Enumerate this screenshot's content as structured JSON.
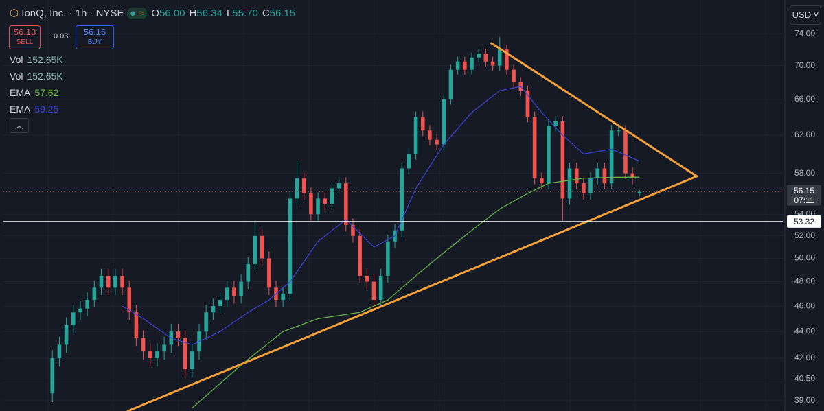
{
  "toolbar": {
    "symbol": "IonQ, Inc. · 1h · NYSE",
    "ohlc": [
      {
        "key": "O",
        "value": "56.00"
      },
      {
        "key": "H",
        "value": "56.34"
      },
      {
        "key": "L",
        "value": "55.70"
      },
      {
        "key": "C",
        "value": "56.15"
      }
    ],
    "sell": {
      "price": "56.13",
      "label": "SELL"
    },
    "spread": "0.03",
    "buy": {
      "price": "56.16",
      "label": "BUY"
    },
    "indicators": [
      {
        "name": "Vol",
        "value": "152.65K",
        "color": "#8fb9b4"
      },
      {
        "name": "Vol",
        "value": "152.65K",
        "color": "#8fb9b4"
      },
      {
        "name": "EMA",
        "value": "57.62",
        "color": "#6abf4b"
      },
      {
        "name": "EMA",
        "value": "59.25",
        "color": "#3b45d9"
      }
    ],
    "currency": "USD",
    "countdown": "07:11"
  },
  "chart_data": {
    "type": "candlestick",
    "log_scale": true,
    "grid": true,
    "up_color": "#26a69a",
    "down_color": "#ef5350",
    "xlim": [
      -7,
      104.5
    ],
    "ylim": [
      38.3,
      78.5
    ],
    "yticks": [
      {
        "value": 74,
        "label": "74.00"
      },
      {
        "value": 70,
        "label": "70.00"
      },
      {
        "value": 66,
        "label": "66.00"
      },
      {
        "value": 62,
        "label": "62.00"
      },
      {
        "value": 58,
        "label": "58.00"
      },
      {
        "value": 54,
        "label": "54.00"
      },
      {
        "value": 52,
        "label": "52.00"
      },
      {
        "value": 50,
        "label": "50.00"
      },
      {
        "value": 48,
        "label": "48.00"
      },
      {
        "value": 46,
        "label": "46.00"
      },
      {
        "value": 44,
        "label": "44.00"
      },
      {
        "value": 42,
        "label": "42.00"
      },
      {
        "value": 40.5,
        "label": "40.50"
      },
      {
        "value": 39,
        "label": "39.00"
      }
    ],
    "open": [
      39.5,
      42,
      43,
      44.5,
      45.5,
      45.8,
      46.5,
      47.5,
      48.5,
      47.5,
      48.5,
      47.5,
      45.5,
      43.5,
      42.5,
      42,
      42.5,
      43,
      44,
      43.5,
      41.2,
      42.5,
      44,
      45.5,
      46,
      46.5,
      47.5,
      46.8,
      48,
      49.5,
      52,
      50,
      47.5,
      46.5,
      47,
      55.5,
      57.5,
      56,
      54,
      55.5,
      55,
      56.5,
      57,
      53,
      52,
      48.5,
      48,
      46.5,
      48.5,
      51.5,
      52.5,
      58.5,
      60,
      64,
      62.5,
      61.5,
      61,
      66,
      69.5,
      70.5,
      69.5,
      71,
      71.5,
      70.5,
      70,
      72,
      69.5,
      68,
      67,
      64,
      57.5,
      57,
      63,
      63.5,
      55.5,
      58.5,
      57,
      56,
      57.5,
      58.5,
      57,
      62.5,
      62.5,
      58,
      56
    ],
    "high": [
      42.6,
      43.6,
      45.1,
      46.1,
      46.4,
      47.1,
      48.1,
      49.1,
      49.1,
      49.1,
      49.1,
      48.1,
      46.1,
      44.1,
      43.1,
      43.1,
      43.6,
      44.6,
      44.6,
      44.1,
      43.1,
      44.6,
      46.1,
      46.6,
      47.1,
      48.1,
      48.1,
      48.6,
      50.1,
      53.4,
      52.6,
      50.6,
      48.1,
      47.6,
      56.1,
      59.3,
      58.1,
      56.6,
      56.1,
      56.1,
      57.1,
      57.6,
      57.6,
      53.6,
      52.6,
      49.1,
      48.6,
      49.1,
      52.1,
      53.1,
      59.1,
      60.6,
      64.6,
      64.6,
      63.1,
      62.1,
      66.6,
      70.1,
      71.1,
      71.1,
      71.6,
      72.1,
      72.1,
      71.1,
      73.6,
      72.6,
      70.1,
      68.6,
      67.6,
      64.6,
      58.1,
      63.6,
      64.1,
      64.1,
      59.1,
      59.1,
      57.6,
      58.1,
      59.1,
      59.1,
      63.1,
      63.1,
      63.1,
      58.6,
      56.34
    ],
    "low": [
      38.9,
      41.4,
      42.4,
      43.9,
      44.9,
      45.2,
      45.9,
      46.9,
      46.9,
      46.9,
      46.9,
      44.9,
      42.9,
      41.9,
      41.4,
      41.4,
      41.9,
      42.4,
      42.9,
      40.6,
      40.6,
      41.9,
      43.4,
      44.9,
      45.4,
      45.9,
      46.2,
      46.2,
      47.4,
      48.9,
      49.4,
      46.9,
      45.9,
      45.9,
      46.4,
      54.9,
      55.4,
      53.4,
      53.4,
      54.4,
      54.4,
      55.9,
      52.4,
      51.4,
      47.9,
      47.4,
      45.6,
      45.9,
      47.9,
      50.9,
      51.9,
      57.9,
      59.4,
      61.9,
      60.9,
      60.4,
      60.4,
      65.4,
      68.9,
      68.9,
      68.9,
      70.4,
      69.9,
      69.4,
      69.4,
      68.9,
      67.4,
      66.4,
      63.4,
      56.9,
      56.4,
      56.4,
      62.4,
      53.4,
      54.9,
      56.4,
      55.4,
      55.4,
      56.9,
      56.4,
      56.4,
      61.9,
      57.4,
      56.9,
      55.7
    ],
    "close": [
      42,
      43,
      44.5,
      45.5,
      45.8,
      46.5,
      47.5,
      48.5,
      47.5,
      48.5,
      47.5,
      45.5,
      43.5,
      42.5,
      42,
      42.5,
      43,
      44,
      43.5,
      41.2,
      42.5,
      44,
      45.5,
      46,
      46.5,
      47.5,
      46.8,
      48,
      49.5,
      52,
      50,
      47.5,
      46.5,
      47,
      55.5,
      57.5,
      56,
      54,
      55.5,
      55,
      56.5,
      57,
      53,
      52,
      48.5,
      48,
      46.5,
      48.5,
      51.5,
      52.5,
      58.5,
      60,
      64,
      62.5,
      61.5,
      61,
      66,
      69.5,
      70.5,
      69.5,
      71,
      71.5,
      70.5,
      70,
      72,
      69.5,
      68,
      67,
      64,
      57.5,
      57,
      63,
      63.5,
      55.5,
      58.5,
      57,
      56,
      57.5,
      58.5,
      57,
      62.5,
      62.5,
      58,
      57.5,
      56.15
    ],
    "series": [
      {
        "name": "EMA",
        "color": "#3b45d9",
        "x": [
          10,
          13,
          17,
          20,
          24,
          28,
          31,
          34,
          38,
          42,
          46,
          49,
          52,
          56,
          60,
          64,
          67,
          70,
          73,
          76,
          80,
          84
        ],
        "values": [
          46,
          45,
          43.5,
          43,
          44,
          45.5,
          46.5,
          48,
          51.5,
          53.5,
          51,
          52,
          56.5,
          61,
          64.5,
          67,
          67.5,
          64.5,
          62,
          60,
          60.5,
          59.25
        ]
      },
      {
        "name": "EMA",
        "color": "#6abf4b",
        "x": [
          20,
          27,
          33,
          38,
          44,
          48,
          52,
          56,
          60,
          64,
          68,
          71,
          76,
          80,
          84
        ],
        "values": [
          38.5,
          41.5,
          44,
          45,
          45.5,
          46.5,
          48.5,
          50.5,
          52.5,
          54.5,
          56,
          57,
          57.5,
          57.6,
          57.62
        ]
      }
    ],
    "trendlines": [
      {
        "color": "#f5a13a",
        "x": [
          62.8,
          92.2
        ],
        "y": [
          72.8,
          57.7
        ]
      },
      {
        "color": "#f5a13a",
        "x": [
          10.8,
          92.2
        ],
        "y": [
          38.3,
          57.7
        ]
      }
    ],
    "hlines": [
      {
        "value": 53.32,
        "color": "#ffffff"
      }
    ]
  }
}
